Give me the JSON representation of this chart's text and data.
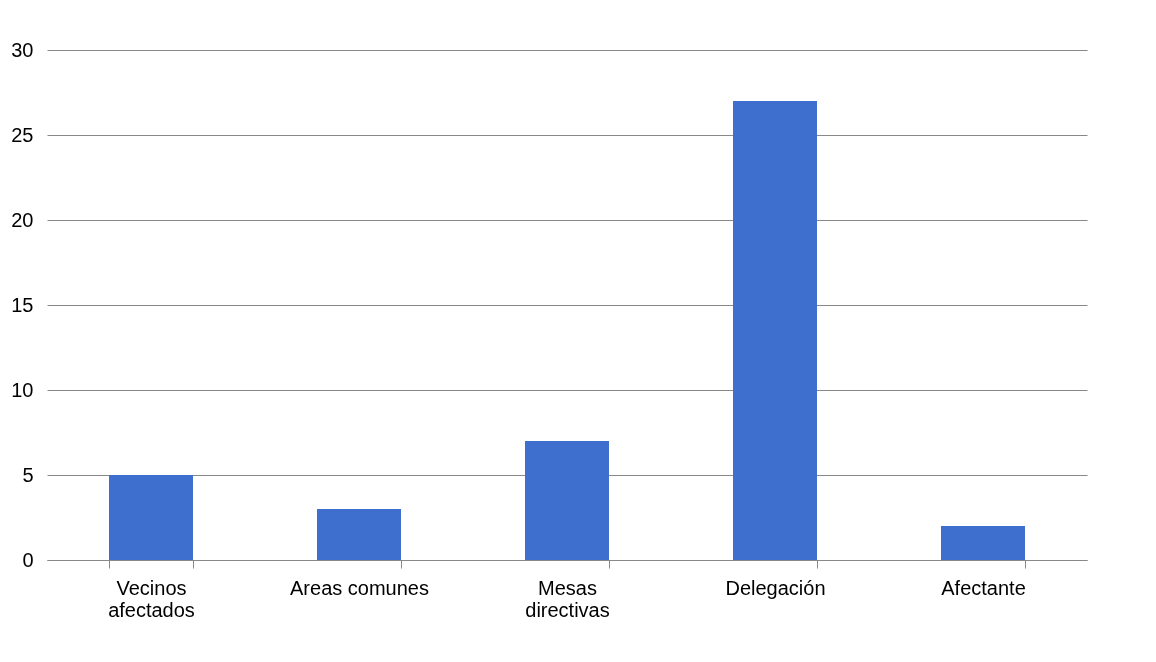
{
  "chart_data": {
    "type": "bar",
    "categories": [
      "Vecinos afectados",
      "Areas comunes",
      "Mesas directivas",
      "Delegación",
      "Afectante"
    ],
    "values": [
      5,
      3,
      7,
      27,
      2
    ],
    "color": "#3e6fcf",
    "ylim": [
      0,
      30
    ],
    "yticks": [
      0,
      5,
      10,
      15,
      20,
      25,
      30
    ],
    "grid": "y"
  }
}
